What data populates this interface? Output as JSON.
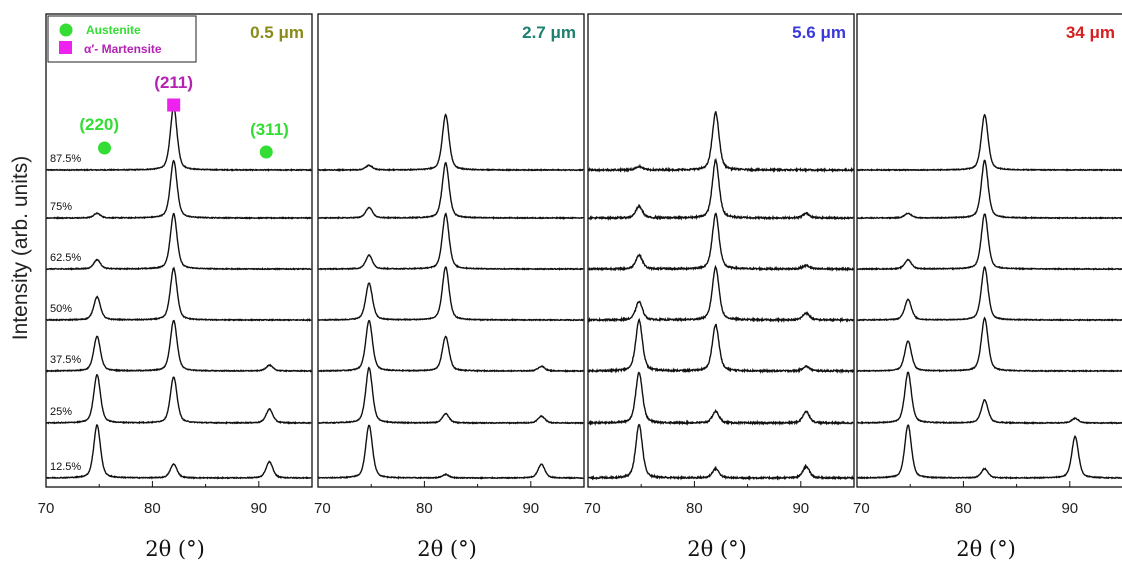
{
  "chart_data": {
    "type": "line",
    "ylabel": "Intensity (arb. units)",
    "xlim": [
      70,
      95
    ],
    "x_ticks": [
      70,
      80,
      90
    ],
    "legend": {
      "placement": "top-left",
      "entries": [
        {
          "label": "Austenite",
          "marker": "circle",
          "color": "#33dd33"
        },
        {
          "label": "α′- Martensite",
          "marker": "square",
          "color": "#ee22ee",
          "text_color": "#b322b3"
        }
      ]
    },
    "peak_annotations": [
      {
        "label": "(220)",
        "x": 75,
        "color": "#33dd33",
        "marker": "circle"
      },
      {
        "label": "(211)",
        "x": 82,
        "color": "#b322b3",
        "marker": "square"
      },
      {
        "label": "(311)",
        "x": 91,
        "color": "#33dd33",
        "marker": "circle"
      }
    ],
    "strain_levels": [
      "87.5%",
      "75%",
      "62.5%",
      "50%",
      "37.5%",
      "25%",
      "12.5%"
    ],
    "panels": [
      {
        "title": "0.5 μm",
        "title_color": "#8b8b1a",
        "xlabel": "2θ (°)",
        "series": [
          {
            "label": "87.5%",
            "peaks": [
              {
                "x": 82.0,
                "h": 55
              }
            ]
          },
          {
            "label": "75%",
            "peaks": [
              {
                "x": 74.8,
                "h": 4
              },
              {
                "x": 82.0,
                "h": 50
              }
            ]
          },
          {
            "label": "62.5%",
            "peaks": [
              {
                "x": 74.8,
                "h": 8
              },
              {
                "x": 82.0,
                "h": 48
              }
            ]
          },
          {
            "label": "50%",
            "peaks": [
              {
                "x": 74.8,
                "h": 20
              },
              {
                "x": 82.0,
                "h": 45
              }
            ]
          },
          {
            "label": "37.5%",
            "peaks": [
              {
                "x": 74.8,
                "h": 30
              },
              {
                "x": 82.0,
                "h": 44
              },
              {
                "x": 91.0,
                "h": 5
              }
            ]
          },
          {
            "label": "25%",
            "peaks": [
              {
                "x": 74.8,
                "h": 42
              },
              {
                "x": 82.0,
                "h": 40
              },
              {
                "x": 91.0,
                "h": 12
              }
            ]
          },
          {
            "label": "12.5%",
            "peaks": [
              {
                "x": 74.8,
                "h": 46
              },
              {
                "x": 82.0,
                "h": 12
              },
              {
                "x": 91.0,
                "h": 14
              }
            ]
          }
        ]
      },
      {
        "title": "2.7 μm",
        "title_color": "#1e8070",
        "xlabel": "2θ (°)",
        "series": [
          {
            "label": "87.5%",
            "peaks": [
              {
                "x": 74.8,
                "h": 4
              },
              {
                "x": 82.0,
                "h": 48
              }
            ]
          },
          {
            "label": "75%",
            "peaks": [
              {
                "x": 74.8,
                "h": 9
              },
              {
                "x": 82.0,
                "h": 48
              }
            ]
          },
          {
            "label": "62.5%",
            "peaks": [
              {
                "x": 74.8,
                "h": 12
              },
              {
                "x": 82.0,
                "h": 48
              }
            ]
          },
          {
            "label": "50%",
            "peaks": [
              {
                "x": 74.8,
                "h": 32
              },
              {
                "x": 82.0,
                "h": 46
              }
            ]
          },
          {
            "label": "37.5%",
            "peaks": [
              {
                "x": 74.8,
                "h": 44
              },
              {
                "x": 82.0,
                "h": 30
              },
              {
                "x": 91.0,
                "h": 4
              }
            ]
          },
          {
            "label": "25%",
            "peaks": [
              {
                "x": 74.8,
                "h": 48
              },
              {
                "x": 82.0,
                "h": 8
              },
              {
                "x": 91.0,
                "h": 6
              }
            ]
          },
          {
            "label": "12.5%",
            "peaks": [
              {
                "x": 74.8,
                "h": 46
              },
              {
                "x": 82.0,
                "h": 3
              },
              {
                "x": 91.0,
                "h": 12
              }
            ]
          }
        ]
      },
      {
        "title": "5.6 μm",
        "title_color": "#3a3adb",
        "xlabel": "2θ (°)",
        "series": [
          {
            "label": "87.5%",
            "peaks": [
              {
                "x": 74.8,
                "h": 3
              },
              {
                "x": 82.0,
                "h": 50
              }
            ]
          },
          {
            "label": "75%",
            "peaks": [
              {
                "x": 74.8,
                "h": 10
              },
              {
                "x": 82.0,
                "h": 50
              },
              {
                "x": 90.5,
                "h": 4
              }
            ]
          },
          {
            "label": "62.5%",
            "peaks": [
              {
                "x": 74.8,
                "h": 12
              },
              {
                "x": 82.0,
                "h": 48
              },
              {
                "x": 90.5,
                "h": 3
              }
            ]
          },
          {
            "label": "50%",
            "peaks": [
              {
                "x": 74.8,
                "h": 16
              },
              {
                "x": 82.0,
                "h": 46
              },
              {
                "x": 90.5,
                "h": 6
              }
            ]
          },
          {
            "label": "37.5%",
            "peaks": [
              {
                "x": 74.8,
                "h": 44
              },
              {
                "x": 82.0,
                "h": 40
              },
              {
                "x": 90.5,
                "h": 4
              }
            ]
          },
          {
            "label": "25%",
            "peaks": [
              {
                "x": 74.8,
                "h": 44
              },
              {
                "x": 82.0,
                "h": 10
              },
              {
                "x": 90.5,
                "h": 10
              }
            ]
          },
          {
            "label": "12.5%",
            "peaks": [
              {
                "x": 74.8,
                "h": 46
              },
              {
                "x": 82.0,
                "h": 8
              },
              {
                "x": 90.5,
                "h": 10
              }
            ]
          }
        ]
      },
      {
        "title": "34 μm",
        "title_color": "#d42020",
        "xlabel": "2θ (°)",
        "series": [
          {
            "label": "87.5%",
            "peaks": [
              {
                "x": 82.0,
                "h": 48
              }
            ]
          },
          {
            "label": "75%",
            "peaks": [
              {
                "x": 74.8,
                "h": 4
              },
              {
                "x": 82.0,
                "h": 50
              }
            ]
          },
          {
            "label": "62.5%",
            "peaks": [
              {
                "x": 74.8,
                "h": 8
              },
              {
                "x": 82.0,
                "h": 48
              }
            ]
          },
          {
            "label": "50%",
            "peaks": [
              {
                "x": 74.8,
                "h": 18
              },
              {
                "x": 82.0,
                "h": 46
              }
            ]
          },
          {
            "label": "37.5%",
            "peaks": [
              {
                "x": 74.8,
                "h": 26
              },
              {
                "x": 82.0,
                "h": 46
              }
            ]
          },
          {
            "label": "25%",
            "peaks": [
              {
                "x": 74.8,
                "h": 44
              },
              {
                "x": 82.0,
                "h": 20
              },
              {
                "x": 90.5,
                "h": 4
              }
            ]
          },
          {
            "label": "12.5%",
            "peaks": [
              {
                "x": 74.8,
                "h": 46
              },
              {
                "x": 82.0,
                "h": 8
              },
              {
                "x": 90.5,
                "h": 36
              }
            ]
          }
        ]
      }
    ]
  }
}
